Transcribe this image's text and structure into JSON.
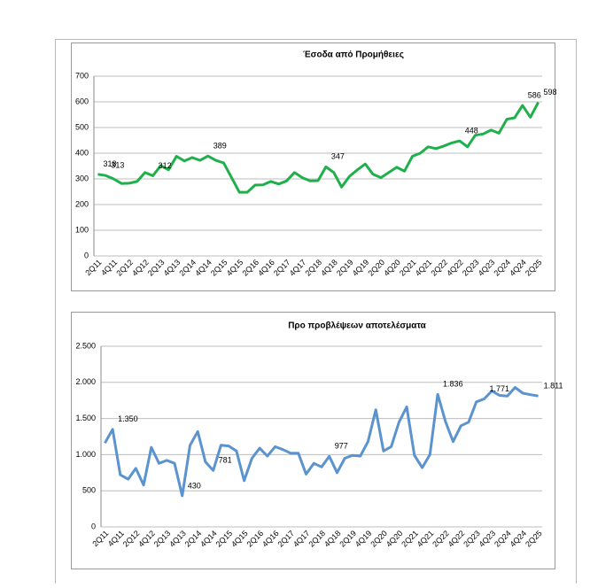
{
  "chart_data": [
    {
      "type": "line",
      "title": "Έσοδα από Προμήθειες",
      "color": "#1fb04b",
      "categories": [
        "2Q11",
        null,
        "4Q11",
        null,
        "2Q12",
        null,
        "4Q12",
        null,
        "2Q13",
        null,
        "4Q13",
        null,
        "2Q14",
        null,
        "4Q14",
        null,
        "2Q15",
        null,
        "4Q15",
        null,
        "2Q16",
        null,
        "4Q16",
        null,
        "2Q17",
        null,
        "4Q17",
        null,
        "2Q18",
        null,
        "4Q18",
        null,
        "2Q19",
        null,
        "4Q19",
        null,
        "2Q20",
        null,
        "4Q20",
        null,
        "2Q21",
        null,
        "4Q21",
        null,
        "2Q22",
        null,
        "4Q22",
        null,
        "2Q23",
        null,
        "4Q23",
        null,
        "2Q24",
        null,
        "4Q24",
        null,
        "2Q25"
      ],
      "values": [
        318,
        313,
        300,
        282,
        283,
        290,
        325,
        312,
        352,
        335,
        388,
        370,
        383,
        372,
        389,
        372,
        362,
        305,
        248,
        248,
        276,
        277,
        290,
        280,
        292,
        325,
        305,
        292,
        293,
        347,
        325,
        268,
        310,
        335,
        358,
        318,
        305,
        325,
        345,
        330,
        388,
        400,
        425,
        418,
        428,
        440,
        448,
        425,
        470,
        475,
        490,
        478,
        532,
        538,
        586,
        540,
        598
      ],
      "value_labels": [
        "318",
        "313",
        null,
        null,
        null,
        null,
        null,
        "312",
        null,
        null,
        null,
        null,
        null,
        null,
        "389",
        null,
        null,
        null,
        null,
        null,
        null,
        null,
        null,
        null,
        null,
        null,
        null,
        null,
        null,
        "347",
        null,
        null,
        null,
        null,
        null,
        null,
        null,
        null,
        null,
        null,
        null,
        null,
        null,
        null,
        null,
        null,
        "448",
        null,
        null,
        null,
        null,
        null,
        null,
        null,
        "586",
        null,
        "598"
      ],
      "ylim": [
        0,
        700
      ],
      "yticks": [
        0,
        100,
        200,
        300,
        400,
        500,
        600,
        700
      ],
      "grid": true
    },
    {
      "type": "line",
      "title": "Προ προβλέψεων αποτελέσματα",
      "color": "#5b93cf",
      "categories": [
        "2Q11",
        null,
        "4Q11",
        null,
        "2Q12",
        null,
        "4Q12",
        null,
        "2Q13",
        null,
        "4Q13",
        null,
        "2Q14",
        null,
        "4Q14",
        null,
        "2Q15",
        null,
        "4Q15",
        null,
        "2Q16",
        null,
        "4Q16",
        null,
        "2Q17",
        null,
        "4Q17",
        null,
        "2Q18",
        null,
        "4Q18",
        null,
        "2Q19",
        null,
        "4Q19",
        null,
        "2Q20",
        null,
        "4Q20",
        null,
        "2Q21",
        null,
        "4Q21",
        null,
        "2Q22",
        null,
        "4Q22",
        null,
        "2Q23",
        null,
        "4Q23",
        null,
        "2Q24",
        null,
        "4Q24",
        null,
        "2Q25"
      ],
      "values": [
        1160,
        1350,
        720,
        660,
        810,
        580,
        1100,
        880,
        920,
        880,
        430,
        1130,
        1320,
        900,
        781,
        1130,
        1120,
        1050,
        640,
        950,
        1090,
        980,
        1110,
        1070,
        1020,
        1020,
        730,
        880,
        830,
        977,
        750,
        950,
        990,
        980,
        1180,
        1620,
        1050,
        1110,
        1450,
        1660,
        990,
        820,
        1000,
        1836,
        1460,
        1180,
        1400,
        1450,
        1730,
        1771,
        1880,
        1820,
        1810,
        1930,
        1850,
        1830,
        1811
      ],
      "value_labels": [
        null,
        "1.350",
        null,
        null,
        null,
        null,
        null,
        null,
        null,
        null,
        "430",
        null,
        null,
        null,
        "781",
        null,
        null,
        null,
        null,
        null,
        null,
        null,
        null,
        null,
        null,
        null,
        null,
        null,
        null,
        "977",
        null,
        null,
        null,
        null,
        null,
        null,
        null,
        null,
        null,
        null,
        null,
        null,
        null,
        "1.836",
        null,
        null,
        null,
        null,
        null,
        "1.771",
        null,
        null,
        null,
        null,
        null,
        null,
        "1.811"
      ],
      "ylim": [
        0,
        2500
      ],
      "yticks": [
        0,
        {
          "value": 500,
          "label": "500"
        },
        {
          "value": 1000,
          "label": "1.000"
        },
        {
          "value": 1500,
          "label": "1.500"
        },
        {
          "value": 2000,
          "label": "2.000"
        },
        {
          "value": 2500,
          "label": "2.500"
        }
      ],
      "grid": true
    }
  ]
}
